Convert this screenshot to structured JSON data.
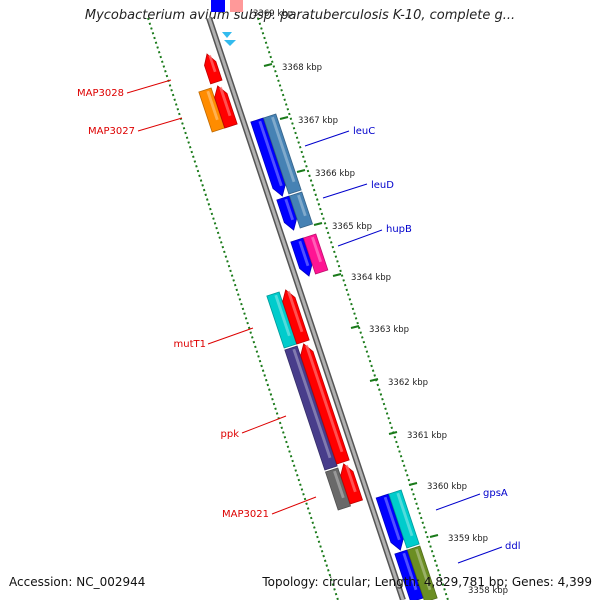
{
  "title": "Mycobacterium avium subsp. paratuberculosis K-10, complete g...",
  "footer": {
    "accession": "Accession: NC_002944",
    "summary": "Topology: circular; Length: 4,829,781 bp; Genes: 4,399"
  },
  "kbp_labels": [
    "3369 kbp",
    "3368 kbp",
    "3367 kbp",
    "3366 kbp",
    "3365 kbp",
    "3364 kbp",
    "3363 kbp",
    "3362 kbp",
    "3361 kbp",
    "3360 kbp",
    "3359 kbp",
    "3358 kbp"
  ],
  "genes": [
    {
      "label": "MAP3028",
      "strand": "reverse",
      "color": "#dd0000"
    },
    {
      "label": "MAP3027",
      "strand": "reverse",
      "color": "#dd0000"
    },
    {
      "label": "leuC",
      "strand": "forward",
      "color": "#0000cc"
    },
    {
      "label": "leuD",
      "strand": "forward",
      "color": "#0000cc"
    },
    {
      "label": "hupB",
      "strand": "forward",
      "color": "#0000cc"
    },
    {
      "label": "mutT1",
      "strand": "reverse",
      "color": "#dd0000"
    },
    {
      "label": "ppk",
      "strand": "reverse",
      "color": "#dd0000"
    },
    {
      "label": "MAP3021",
      "strand": "reverse",
      "color": "#dd0000"
    },
    {
      "label": "gpsA",
      "strand": "forward",
      "color": "#0000cc"
    },
    {
      "label": "ddl",
      "strand": "forward",
      "color": "#0000cc"
    }
  ],
  "colors": {
    "backbone": "#8c8c8c",
    "tick": "#1a7a1a",
    "forward_cds": "#0000ff",
    "forward_gene": "#4682b4",
    "reverse_cds": "#ff0000",
    "orange": "#ff8c00",
    "cyan": "#00cccc",
    "magenta": "#ff1493",
    "purple": "#483d8b",
    "gray": "#696969",
    "olive": "#6b8e23"
  }
}
